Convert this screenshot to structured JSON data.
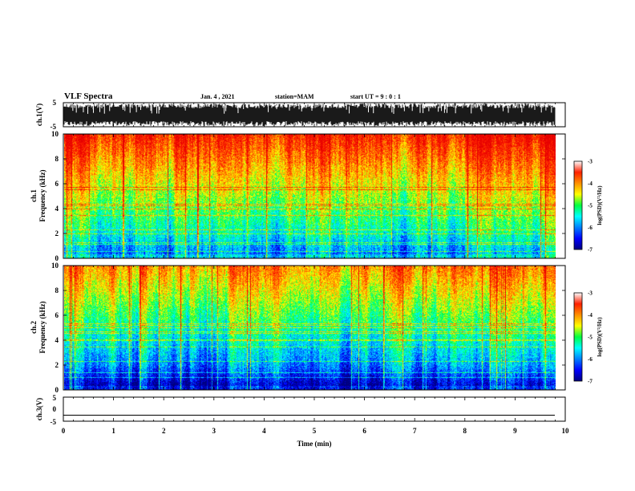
{
  "header": {
    "title": "VLF Spectra",
    "date": "Jan. 4 , 2021",
    "station": "station=MAM",
    "start": "start UT =  9 : 0 : 1"
  },
  "colors": {
    "background": "#ffffff",
    "axis": "#000000"
  },
  "chart_data": [
    {
      "type": "line",
      "name": "ch1-waveform",
      "ylabel": "ch.1(V)",
      "ylim": [
        -5,
        5
      ],
      "yticks": [
        "5",
        "-5"
      ],
      "xlim": [
        0,
        10
      ],
      "description_values": "broadband noise spanning nearly full +-5 V range, ends near 9.8 min"
    },
    {
      "type": "heatmap",
      "name": "ch1-spectrogram",
      "ylabel_line1": "ch.1",
      "ylabel_line2": "Frequency (kHz)",
      "ylim": [
        0,
        10
      ],
      "yticks": [
        "0",
        "2",
        "4",
        "6",
        "8",
        "10"
      ],
      "xlim": [
        0,
        9.8
      ],
      "colorbar": {
        "label": "log(PSD)(V²/Hz)",
        "range": [
          -7,
          -3
        ],
        "ticks": [
          "-3",
          "-4",
          "-5",
          "-6",
          "-7"
        ]
      }
    },
    {
      "type": "heatmap",
      "name": "ch2-spectrogram",
      "ylabel_line1": "ch.2",
      "ylabel_line2": "Frequency (kHz)",
      "ylim": [
        0,
        10
      ],
      "yticks": [
        "0",
        "2",
        "4",
        "6",
        "8",
        "10"
      ],
      "xlim": [
        0,
        9.8
      ],
      "colorbar": {
        "label": "log(PSD)(V²/Hz)",
        "range": [
          -7,
          -3
        ],
        "ticks": [
          "-3",
          "-4",
          "-5",
          "-6",
          "-7"
        ]
      }
    },
    {
      "type": "line",
      "name": "ch3-waveform",
      "ylabel": "ch.3(V)",
      "ylim": [
        -5,
        5
      ],
      "yticks": [
        "5",
        "0",
        "-5"
      ],
      "xlim": [
        0,
        10
      ],
      "flat_value": -2.5
    }
  ],
  "xaxis": {
    "label": "Time (min)",
    "ticks": [
      "0",
      "1",
      "2",
      "3",
      "4",
      "5",
      "6",
      "7",
      "8",
      "9",
      "10"
    ]
  }
}
